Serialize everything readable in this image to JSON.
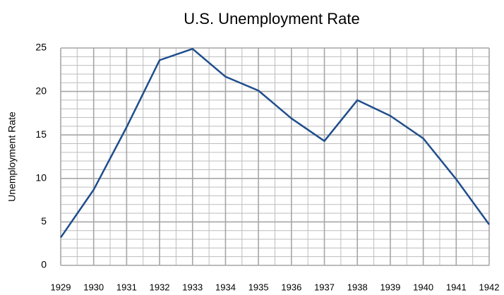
{
  "chart_data": {
    "type": "line",
    "title": "U.S. Unemployment  Rate",
    "y_label": "Unemployment Rate",
    "categories": [
      "1929",
      "1930",
      "1931",
      "1932",
      "1933",
      "1934",
      "1935",
      "1936",
      "1937",
      "1938",
      "1939",
      "1940",
      "1941",
      "1942"
    ],
    "series": [
      {
        "name": "Unemployment Rate",
        "color": "#1f4e8c",
        "values": [
          3.2,
          8.7,
          15.9,
          23.6,
          24.9,
          21.7,
          20.1,
          16.9,
          14.3,
          19.0,
          17.2,
          14.6,
          9.9,
          4.7
        ]
      }
    ],
    "ylim": [
      0,
      25
    ],
    "yticks": [
      0,
      5,
      10,
      15,
      20,
      25
    ],
    "grid": true
  }
}
